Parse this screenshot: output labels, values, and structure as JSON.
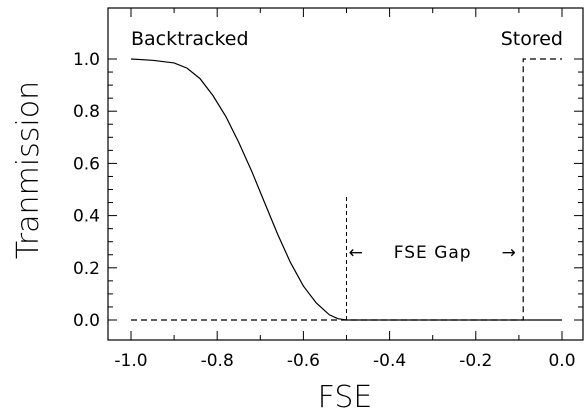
{
  "chart_data": {
    "type": "line",
    "title": "",
    "xlabel": "FSE",
    "ylabel": "Tranmission",
    "xlim": [
      -1.0,
      0.0
    ],
    "ylim": [
      -0.05,
      1.15
    ],
    "x_ticks": [
      -1.0,
      -0.8,
      -0.6,
      -0.4,
      -0.2,
      0.0
    ],
    "x_tick_labels": [
      "-1.0",
      "-0.8",
      "-0.6",
      "-0.4",
      "-0.2",
      "0.0"
    ],
    "y_ticks": [
      0.0,
      0.2,
      0.4,
      0.6,
      0.8,
      1.0
    ],
    "y_tick_labels": [
      "0.0",
      "0.2",
      "0.4",
      "0.6",
      "0.8",
      "1.0"
    ],
    "grid": false,
    "series": [
      {
        "name": "Backtracked",
        "style": "solid",
        "x": [
          -1.0,
          -0.95,
          -0.9,
          -0.87,
          -0.84,
          -0.81,
          -0.78,
          -0.75,
          -0.72,
          -0.69,
          -0.66,
          -0.63,
          -0.6,
          -0.57,
          -0.54,
          -0.52,
          -0.5,
          -0.3,
          0.0
        ],
        "y": [
          1.0,
          0.995,
          0.985,
          0.965,
          0.925,
          0.86,
          0.78,
          0.68,
          0.57,
          0.45,
          0.33,
          0.22,
          0.13,
          0.065,
          0.02,
          0.005,
          0.0,
          0.0,
          0.0
        ]
      },
      {
        "name": "Stored",
        "style": "dashed",
        "x": [
          -1.0,
          -0.5,
          -0.13,
          -0.13,
          -0.09,
          -0.09,
          0.0
        ],
        "y": [
          0.0,
          0.0,
          0.0,
          0.0,
          0.0,
          1.0,
          1.0
        ]
      }
    ],
    "vertical_markers": [
      {
        "x": -0.5,
        "y_top": 0.48
      }
    ],
    "annotations": {
      "backtracked": "Backtracked",
      "stored": "Stored",
      "gap_left_arrow": "←",
      "gap_text": "FSE Gap",
      "gap_right_arrow": "→",
      "gap_x_range": [
        -0.5,
        -0.1
      ],
      "gap_y": 0.26
    }
  }
}
